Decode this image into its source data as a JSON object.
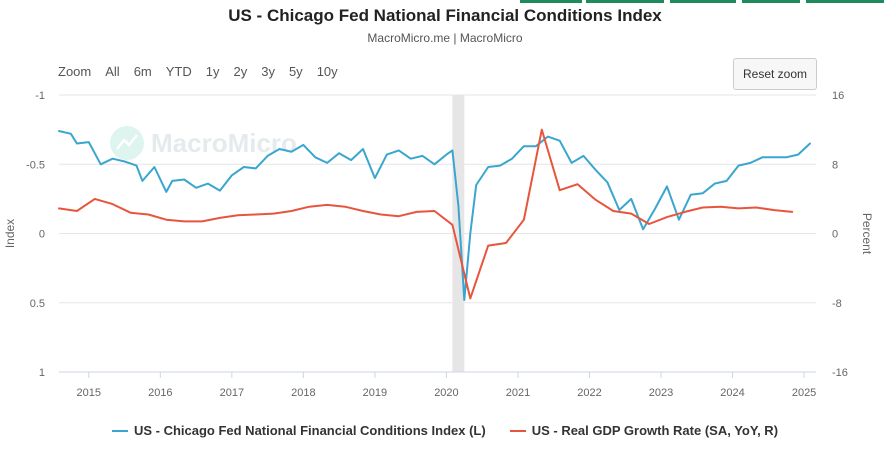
{
  "header": {
    "title": "US - Chicago Fed National Financial Conditions Index",
    "subtitle": "MacroMicro.me | MacroMicro",
    "watermark": "MacroMicro"
  },
  "toolbar": {
    "zoom_label": "Zoom",
    "ranges": [
      "All",
      "6m",
      "YTD",
      "1y",
      "2y",
      "3y",
      "5y",
      "10y"
    ],
    "reset_label": "Reset zoom"
  },
  "colors": {
    "nfci": "#3aa6d0",
    "gdp": "#e8553d",
    "highlight": "#e6e6e6",
    "grid": "#e6e6e6",
    "tab": "#1f8a5b"
  },
  "chart_data": {
    "type": "line",
    "title": "US - Chicago Fed National Financial Conditions Index",
    "grid": true,
    "legend_position": "bottom",
    "x_axis": {
      "type": "date",
      "range": [
        "2014-08",
        "2025-03"
      ],
      "tick_labels": [
        "2015",
        "2016",
        "2017",
        "2018",
        "2019",
        "2020",
        "2021",
        "2022",
        "2023",
        "2024",
        "2025"
      ]
    },
    "left_axis": {
      "label": "Index",
      "reversed": true,
      "range": [
        -1,
        1
      ],
      "tick_labels": [
        "-1",
        "-0.5",
        "0",
        "0.5",
        "1"
      ]
    },
    "right_axis": {
      "label": "Percent",
      "range": [
        -16,
        16
      ],
      "tick_labels": [
        "16",
        "8",
        "0",
        "-8",
        "-16"
      ]
    },
    "highlight_period": [
      "2020-02",
      "2020-04"
    ],
    "series": [
      {
        "name": "US - Chicago Fed National Financial Conditions Index (L)",
        "axis": "left",
        "color": "#3aa6d0",
        "points": [
          [
            "2014-08",
            -0.74
          ],
          [
            "2014-10",
            -0.72
          ],
          [
            "2014-11",
            -0.65
          ],
          [
            "2015-01",
            -0.66
          ],
          [
            "2015-03",
            -0.5
          ],
          [
            "2015-05",
            -0.54
          ],
          [
            "2015-07",
            -0.52
          ],
          [
            "2015-09",
            -0.49
          ],
          [
            "2015-10",
            -0.38
          ],
          [
            "2015-12",
            -0.48
          ],
          [
            "2016-02",
            -0.3
          ],
          [
            "2016-03",
            -0.38
          ],
          [
            "2016-05",
            -0.39
          ],
          [
            "2016-07",
            -0.33
          ],
          [
            "2016-09",
            -0.36
          ],
          [
            "2016-11",
            -0.31
          ],
          [
            "2017-01",
            -0.42
          ],
          [
            "2017-03",
            -0.48
          ],
          [
            "2017-05",
            -0.47
          ],
          [
            "2017-07",
            -0.56
          ],
          [
            "2017-09",
            -0.61
          ],
          [
            "2017-11",
            -0.59
          ],
          [
            "2018-01",
            -0.64
          ],
          [
            "2018-03",
            -0.55
          ],
          [
            "2018-05",
            -0.51
          ],
          [
            "2018-07",
            -0.58
          ],
          [
            "2018-09",
            -0.53
          ],
          [
            "2018-11",
            -0.61
          ],
          [
            "2019-01",
            -0.4
          ],
          [
            "2019-03",
            -0.57
          ],
          [
            "2019-05",
            -0.6
          ],
          [
            "2019-07",
            -0.54
          ],
          [
            "2019-09",
            -0.56
          ],
          [
            "2019-11",
            -0.5
          ],
          [
            "2020-01",
            -0.57
          ],
          [
            "2020-02",
            -0.6
          ],
          [
            "2020-03",
            -0.2
          ],
          [
            "2020-04",
            0.48
          ],
          [
            "2020-05",
            0.0
          ],
          [
            "2020-06",
            -0.35
          ],
          [
            "2020-08",
            -0.48
          ],
          [
            "2020-10",
            -0.49
          ],
          [
            "2020-12",
            -0.54
          ],
          [
            "2021-02",
            -0.63
          ],
          [
            "2021-04",
            -0.63
          ],
          [
            "2021-06",
            -0.7
          ],
          [
            "2021-08",
            -0.67
          ],
          [
            "2021-10",
            -0.51
          ],
          [
            "2021-12",
            -0.56
          ],
          [
            "2022-02",
            -0.46
          ],
          [
            "2022-04",
            -0.37
          ],
          [
            "2022-06",
            -0.17
          ],
          [
            "2022-08",
            -0.25
          ],
          [
            "2022-10",
            -0.03
          ],
          [
            "2022-12",
            -0.18
          ],
          [
            "2023-02",
            -0.34
          ],
          [
            "2023-04",
            -0.1
          ],
          [
            "2023-06",
            -0.28
          ],
          [
            "2023-08",
            -0.29
          ],
          [
            "2023-10",
            -0.36
          ],
          [
            "2023-12",
            -0.38
          ],
          [
            "2024-02",
            -0.49
          ],
          [
            "2024-04",
            -0.51
          ],
          [
            "2024-06",
            -0.55
          ],
          [
            "2024-08",
            -0.55
          ],
          [
            "2024-10",
            -0.55
          ],
          [
            "2024-12",
            -0.57
          ],
          [
            "2025-02",
            -0.65
          ]
        ]
      },
      {
        "name": "US - Real GDP Growth Rate (SA, YoY, R)",
        "axis": "right",
        "color": "#e8553d",
        "points": [
          [
            "2014-08",
            2.9
          ],
          [
            "2014-11",
            2.6
          ],
          [
            "2015-02",
            4.0
          ],
          [
            "2015-05",
            3.4
          ],
          [
            "2015-08",
            2.4
          ],
          [
            "2015-11",
            2.2
          ],
          [
            "2016-02",
            1.6
          ],
          [
            "2016-05",
            1.4
          ],
          [
            "2016-08",
            1.4
          ],
          [
            "2016-11",
            1.8
          ],
          [
            "2017-02",
            2.1
          ],
          [
            "2017-05",
            2.2
          ],
          [
            "2017-08",
            2.3
          ],
          [
            "2017-11",
            2.6
          ],
          [
            "2018-02",
            3.1
          ],
          [
            "2018-05",
            3.3
          ],
          [
            "2018-08",
            3.1
          ],
          [
            "2018-11",
            2.6
          ],
          [
            "2019-02",
            2.2
          ],
          [
            "2019-05",
            2.0
          ],
          [
            "2019-08",
            2.5
          ],
          [
            "2019-11",
            2.6
          ],
          [
            "2020-02",
            1.0
          ],
          [
            "2020-05",
            -7.5
          ],
          [
            "2020-08",
            -1.4
          ],
          [
            "2020-11",
            -1.1
          ],
          [
            "2021-02",
            1.6
          ],
          [
            "2021-05",
            12.0
          ],
          [
            "2021-08",
            5.0
          ],
          [
            "2021-11",
            5.7
          ],
          [
            "2022-02",
            3.9
          ],
          [
            "2022-05",
            2.6
          ],
          [
            "2022-08",
            2.3
          ],
          [
            "2022-11",
            1.1
          ],
          [
            "2023-02",
            1.9
          ],
          [
            "2023-05",
            2.5
          ],
          [
            "2023-08",
            3.0
          ],
          [
            "2023-11",
            3.1
          ],
          [
            "2024-02",
            2.9
          ],
          [
            "2024-05",
            3.0
          ],
          [
            "2024-08",
            2.7
          ],
          [
            "2024-11",
            2.5
          ]
        ]
      }
    ]
  }
}
